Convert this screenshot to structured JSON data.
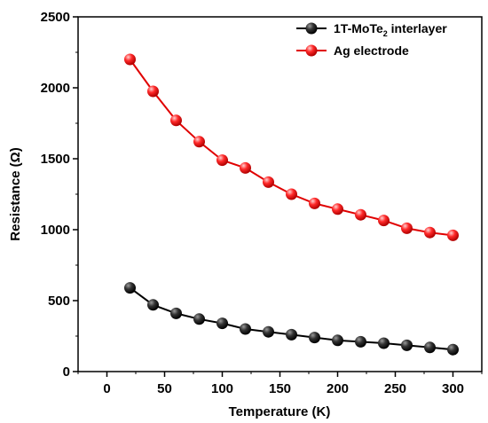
{
  "chart_data": {
    "type": "line",
    "title": "",
    "xlabel": "Temperature (K)",
    "ylabel": "Resistance (Ω)",
    "xlim": [
      -25,
      325
    ],
    "ylim": [
      0,
      2500
    ],
    "xticks": [
      0,
      50,
      100,
      150,
      200,
      250,
      300
    ],
    "yticks": [
      0,
      500,
      1000,
      1500,
      2000,
      2500
    ],
    "grid": false,
    "legend_position": "top-right",
    "x": [
      20,
      40,
      60,
      80,
      100,
      120,
      140,
      160,
      180,
      200,
      220,
      240,
      260,
      280,
      300
    ],
    "series": [
      {
        "name": "1T-MoTe",
        "name_subscript": "2",
        "name_suffix": " interlayer",
        "color": "#000000",
        "values": [
          590,
          470,
          410,
          370,
          340,
          300,
          280,
          260,
          240,
          220,
          210,
          200,
          185,
          170,
          155
        ]
      },
      {
        "name": "Ag electrode",
        "color": "#e00000",
        "values": [
          2200,
          1975,
          1770,
          1620,
          1490,
          1435,
          1335,
          1250,
          1185,
          1145,
          1105,
          1065,
          1010,
          980,
          960
        ]
      }
    ]
  }
}
